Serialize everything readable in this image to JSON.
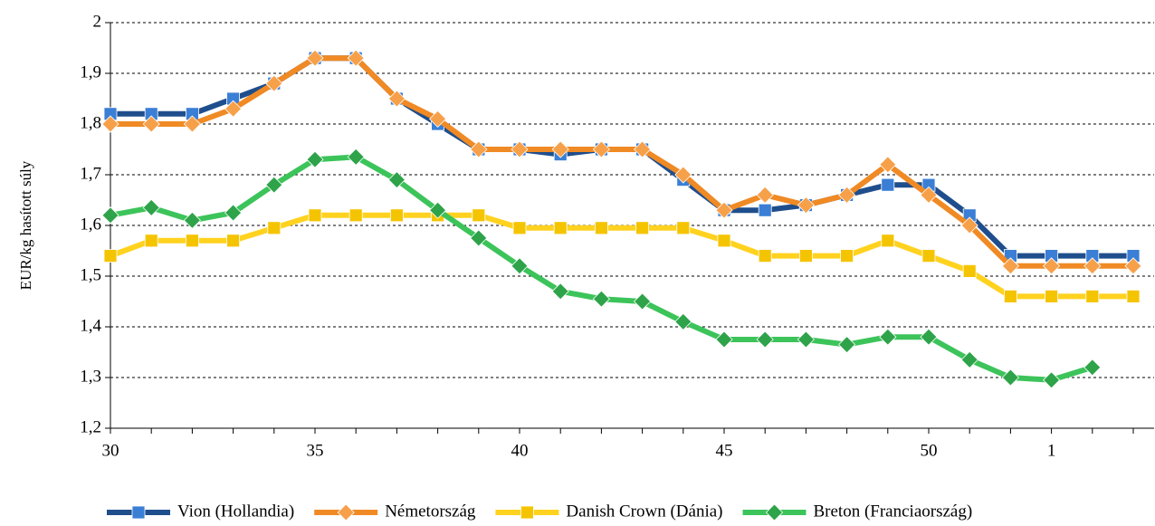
{
  "chart_data": {
    "type": "line",
    "ylabel": "EUR/kg hasított súly",
    "categories": [
      "30",
      null,
      null,
      null,
      null,
      "35",
      null,
      null,
      null,
      null,
      "40",
      null,
      null,
      null,
      null,
      "45",
      null,
      null,
      null,
      null,
      "50",
      null,
      null,
      "1",
      null,
      null
    ],
    "series": [
      {
        "name": "Vion (Hollandia)",
        "color": "#1f4e8c",
        "marker": "square",
        "marker_color": "#3a7fd5",
        "values": [
          1.82,
          1.82,
          1.82,
          1.85,
          1.88,
          1.93,
          1.93,
          1.85,
          1.8,
          1.75,
          1.75,
          1.74,
          1.75,
          1.75,
          1.69,
          1.63,
          1.63,
          1.64,
          1.66,
          1.68,
          1.68,
          1.62,
          1.54,
          1.54,
          1.54,
          1.54
        ]
      },
      {
        "name": "Németország",
        "color": "#f08a24",
        "marker": "diamond",
        "marker_color": "#f7a04a",
        "values": [
          1.8,
          1.8,
          1.8,
          1.83,
          1.88,
          1.93,
          1.93,
          1.85,
          1.81,
          1.75,
          1.75,
          1.75,
          1.75,
          1.75,
          1.7,
          1.63,
          1.66,
          1.64,
          1.66,
          1.72,
          1.66,
          1.6,
          1.52,
          1.52,
          1.52,
          1.52
        ]
      },
      {
        "name": "Danish Crown (Dánia)",
        "color": "#ffd21f",
        "marker": "square",
        "marker_color": "#f5c400",
        "values": [
          1.54,
          1.57,
          1.57,
          1.57,
          1.595,
          1.62,
          1.62,
          1.62,
          1.62,
          1.62,
          1.595,
          1.595,
          1.595,
          1.595,
          1.595,
          1.57,
          1.54,
          1.54,
          1.54,
          1.57,
          1.54,
          1.51,
          1.46,
          1.46,
          1.46,
          1.46
        ]
      },
      {
        "name": "Breton (Franciaország)",
        "color": "#3cc45a",
        "marker": "diamond",
        "marker_color": "#2ea34a",
        "values": [
          1.62,
          1.635,
          1.61,
          1.625,
          1.68,
          1.73,
          1.735,
          1.69,
          1.63,
          1.575,
          1.52,
          1.47,
          1.455,
          1.45,
          1.41,
          1.375,
          1.375,
          1.375,
          1.365,
          1.38,
          1.38,
          1.335,
          1.3,
          1.295,
          1.32,
          null
        ]
      }
    ],
    "ylim": [
      1.2,
      2
    ],
    "yticks": [
      {
        "value": 1.2,
        "label": "1,2"
      },
      {
        "value": 1.3,
        "label": "1,3"
      },
      {
        "value": 1.4,
        "label": "1,4"
      },
      {
        "value": 1.5,
        "label": "1,5"
      },
      {
        "value": 1.6,
        "label": "1,6"
      },
      {
        "value": 1.7,
        "label": "1,7"
      },
      {
        "value": 1.8,
        "label": "1,8"
      },
      {
        "value": 1.9,
        "label": "1,9"
      },
      2
    ],
    "grid": true,
    "legend": "bottom"
  }
}
